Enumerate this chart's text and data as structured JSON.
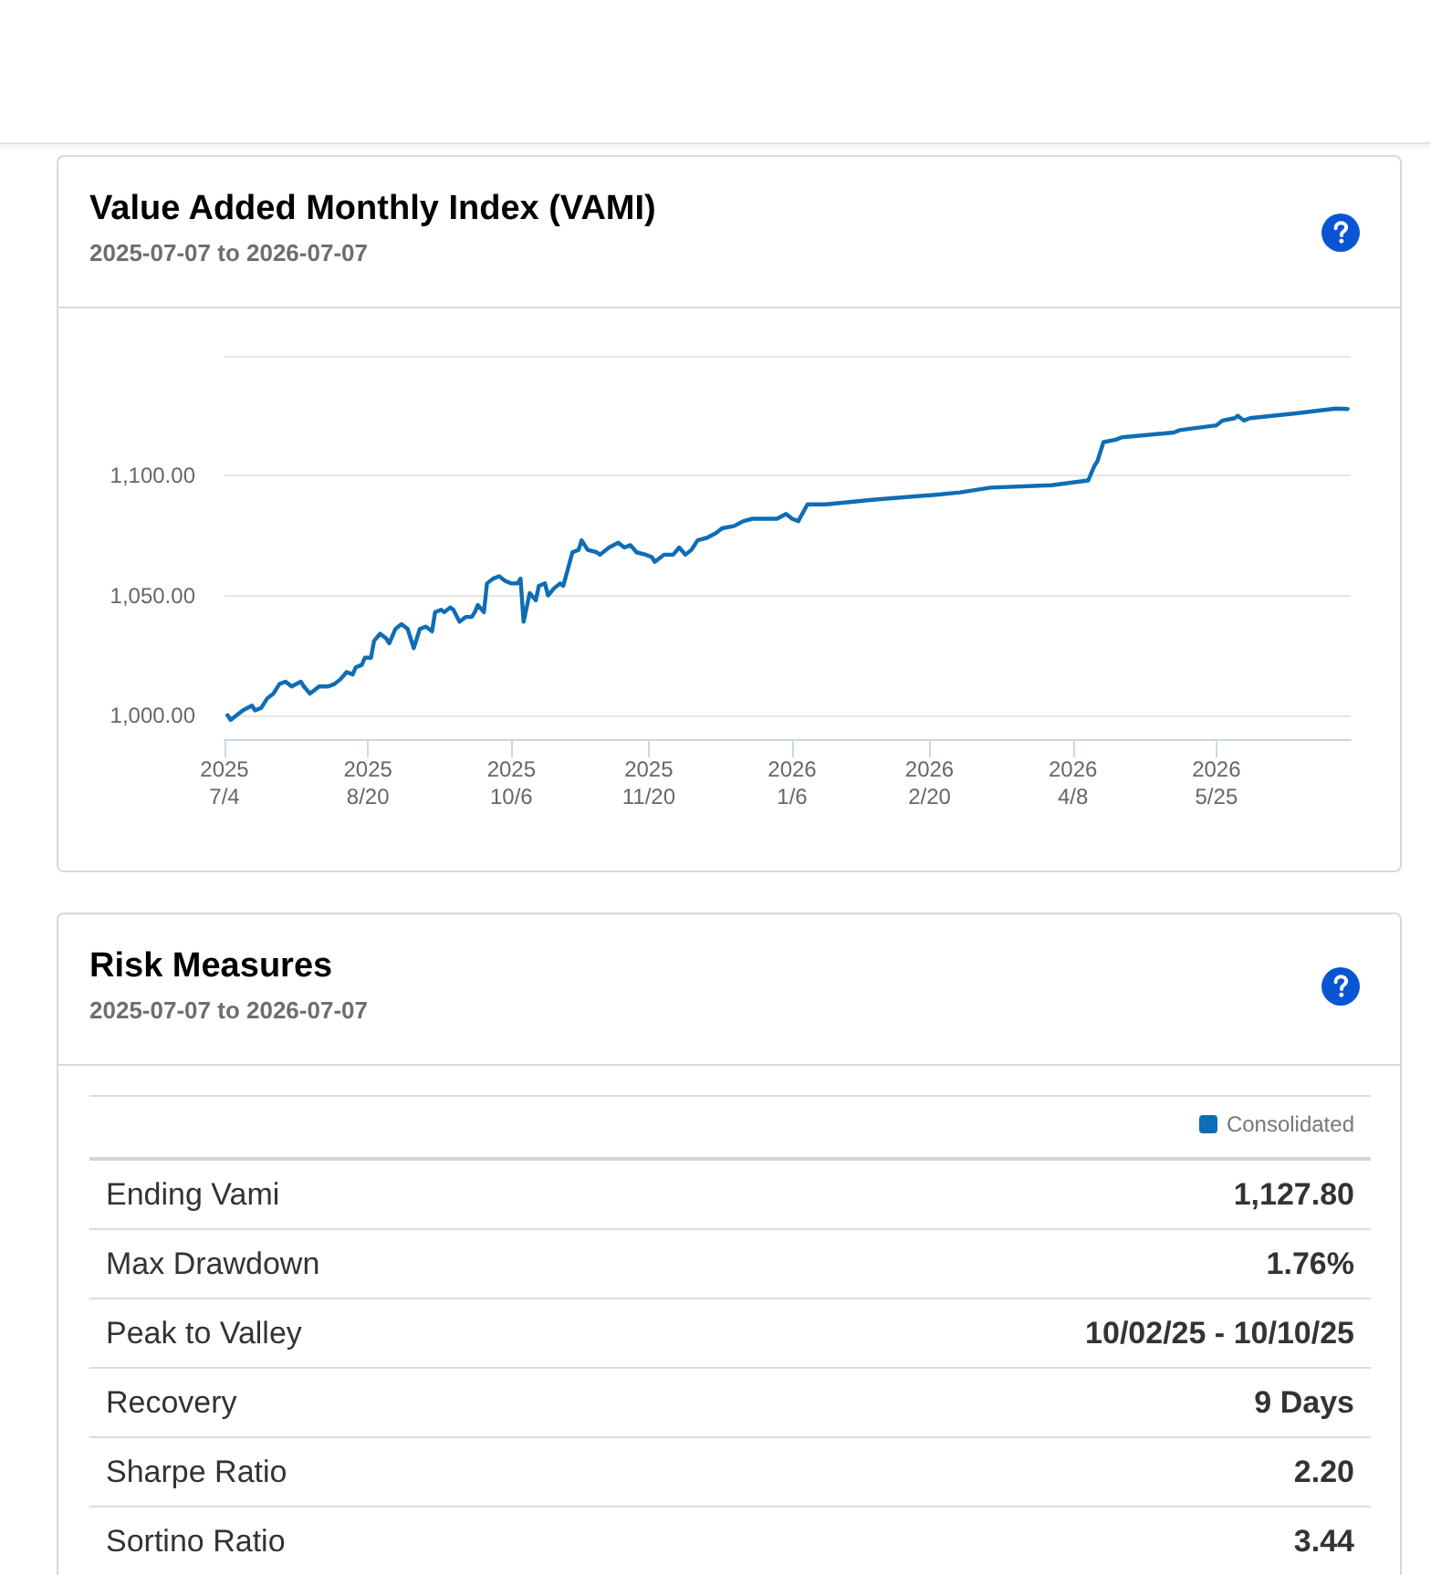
{
  "chart_data": [
    {
      "type": "line",
      "title": "Value Added Monthly Index (VAMI)",
      "subtitle": "2025-07-07 to 2026-07-07",
      "x": [
        "2025-07-05",
        "2025-07-06",
        "2025-07-08",
        "2025-07-10",
        "2025-07-13",
        "2025-07-14",
        "2025-07-16",
        "2025-07-18",
        "2025-07-20",
        "2025-07-22",
        "2025-07-24",
        "2025-07-26",
        "2025-07-29",
        "2025-07-30",
        "2025-08-01",
        "2025-08-02",
        "2025-08-04",
        "2025-08-07",
        "2025-08-09",
        "2025-08-11",
        "2025-08-13",
        "2025-08-15",
        "2025-08-16",
        "2025-08-18",
        "2025-08-19",
        "2025-08-21",
        "2025-08-22",
        "2025-08-24",
        "2025-08-26",
        "2025-08-27",
        "2025-08-29",
        "2025-08-31",
        "2025-09-02",
        "2025-09-03",
        "2025-09-04",
        "2025-09-06",
        "2025-09-08",
        "2025-09-10",
        "2025-09-11",
        "2025-09-13",
        "2025-09-14",
        "2025-09-16",
        "2025-09-17",
        "2025-09-19",
        "2025-09-21",
        "2025-09-23",
        "2025-09-24",
        "2025-09-25",
        "2025-09-27",
        "2025-09-28",
        "2025-09-30",
        "2025-10-02",
        "2025-10-04",
        "2025-10-06",
        "2025-10-08",
        "2025-10-09",
        "2025-10-10",
        "2025-10-12",
        "2025-10-14",
        "2025-10-15",
        "2025-10-17",
        "2025-10-18",
        "2025-10-20",
        "2025-10-22",
        "2025-10-23",
        "2025-10-26",
        "2025-10-28",
        "2025-10-29",
        "2025-10-31",
        "2025-11-03",
        "2025-11-04",
        "2025-11-07",
        "2025-11-10",
        "2025-11-12",
        "2025-11-14",
        "2025-11-16",
        "2025-11-19",
        "2025-11-21",
        "2025-11-22",
        "2025-11-25",
        "2025-11-28",
        "2025-11-30",
        "2025-12-02",
        "2025-12-04",
        "2025-12-06",
        "2025-12-09",
        "2025-12-12",
        "2025-12-14",
        "2025-12-18",
        "2025-12-21",
        "2025-12-24",
        "2026-01-01",
        "2026-01-04",
        "2026-01-06",
        "2026-01-08",
        "2026-01-11",
        "2026-01-17",
        "2026-02-02",
        "2026-02-22",
        "2026-03-02",
        "2026-03-12",
        "2026-04-01",
        "2026-04-13",
        "2026-04-15",
        "2026-04-16",
        "2026-04-18",
        "2026-04-22",
        "2026-04-24",
        "2026-05-11",
        "2026-05-13",
        "2026-05-25",
        "2026-05-27",
        "2026-05-31",
        "2026-06-01",
        "2026-06-03",
        "2026-06-05",
        "2026-06-20",
        "2026-07-03",
        "2026-07-07"
      ],
      "values": [
        1000,
        998,
        1000,
        1002,
        1004,
        1002,
        1003,
        1007,
        1009,
        1013,
        1014,
        1012,
        1014,
        1012,
        1009,
        1010,
        1012,
        1012,
        1013,
        1015,
        1018,
        1017,
        1020,
        1021,
        1024,
        1024,
        1031,
        1034,
        1032,
        1030,
        1036,
        1038,
        1036,
        1032,
        1028,
        1036,
        1037,
        1035,
        1043,
        1044,
        1043,
        1045,
        1044,
        1039,
        1041,
        1041,
        1043,
        1046,
        1043,
        1055,
        1057,
        1058,
        1056,
        1055,
        1055,
        1057,
        1039,
        1051,
        1048,
        1054,
        1055,
        1050,
        1053,
        1055,
        1054,
        1068,
        1069,
        1073,
        1069,
        1068,
        1067,
        1070,
        1072,
        1070,
        1071,
        1068,
        1067,
        1066,
        1064,
        1067,
        1067,
        1070,
        1067,
        1069,
        1073,
        1074,
        1076,
        1078,
        1079,
        1081,
        1082,
        1082,
        1084,
        1082,
        1081,
        1088,
        1088,
        1090,
        1092,
        1093,
        1095,
        1096,
        1098,
        1104,
        1106,
        1114,
        1115,
        1116,
        1118,
        1119,
        1121,
        1123,
        1124,
        1125,
        1123,
        1124,
        1126,
        1128,
        1127.8
      ],
      "color": "#0f6db5",
      "xlim": [
        "2025-07-04",
        "2026-07-08"
      ],
      "xticks": [
        {
          "value": "2025-07-04",
          "label": "2025\n7/4"
        },
        {
          "value": "2025-08-20",
          "label": "2025\n8/20"
        },
        {
          "value": "2025-10-06",
          "label": "2025\n10/6"
        },
        {
          "value": "2025-11-20",
          "label": "2025\n11/20"
        },
        {
          "value": "2026-01-06",
          "label": "2026\n1/6"
        },
        {
          "value": "2026-02-20",
          "label": "2026\n2/20"
        },
        {
          "value": "2026-04-08",
          "label": "2026\n4/8"
        },
        {
          "value": "2026-05-25",
          "label": "2026\n5/25"
        }
      ],
      "ylim": [
        990,
        1150
      ],
      "yticks": [
        {
          "value": 1000,
          "label": "1,000.00"
        },
        {
          "value": 1050,
          "label": "1,050.00"
        },
        {
          "value": 1100,
          "label": "1,100.00"
        },
        {
          "value": 1150,
          "label": null
        }
      ],
      "grid": "y",
      "marker": "none",
      "line_style": "solid"
    },
    {
      "type": "other",
      "title": "Risk Measures",
      "subtitle": "2025-07-07 to 2026-07-07",
      "categories": [
        "Ending Vami",
        "Max Drawdown",
        "Peak to Valley",
        "Recovery",
        "Sharpe Ratio",
        "Sortino Ratio"
      ],
      "series": [
        {
          "name": "Consolidated",
          "color": "#0f6db5",
          "values": [
            1127.8,
            1.76,
            null,
            9,
            2.2,
            3.44
          ],
          "value_labels": [
            "1,127.80",
            "1.76%",
            "10/02/25 - 10/10/25",
            "9 Days",
            "2.20",
            "3.44"
          ]
        }
      ],
      "legend": "top right"
    }
  ]
}
